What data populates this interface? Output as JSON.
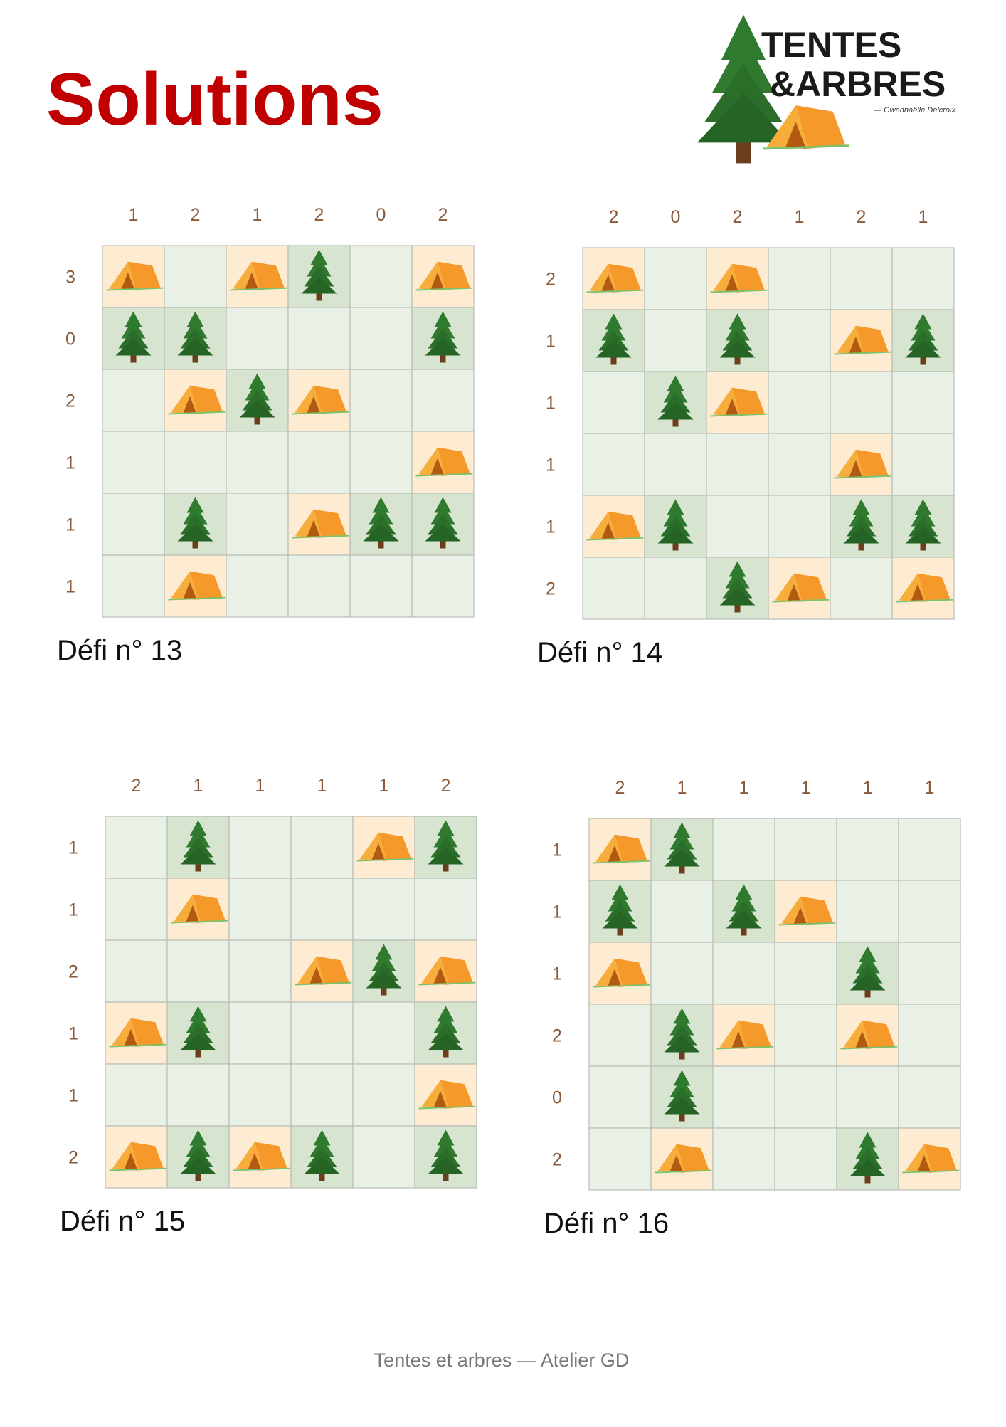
{
  "header": {
    "title": "Solutions",
    "logo": {
      "line1": "TENTES",
      "line2": "&ARBRES",
      "author": "— Gwennaëlle Delcroix"
    }
  },
  "puzzles": [
    {
      "label": "Défi n° 13",
      "columns": [
        1,
        2,
        1,
        2,
        0,
        2
      ],
      "rows": [
        3,
        0,
        2,
        1,
        1,
        1
      ],
      "grid": [
        "T.TA.T",
        "AA...A",
        ".TAT..",
        ".....T",
        ".A.TAA",
        ".T...."
      ]
    },
    {
      "label": "Défi n° 14",
      "columns": [
        2,
        0,
        2,
        1,
        2,
        1
      ],
      "rows": [
        2,
        1,
        1,
        1,
        1,
        2
      ],
      "grid": [
        "T.T...",
        "A.A.TA",
        ".AT...",
        "....T.",
        "TA..AA",
        "..AT.T"
      ]
    },
    {
      "label": "Défi n° 15",
      "columns": [
        2,
        1,
        1,
        1,
        1,
        2
      ],
      "rows": [
        1,
        1,
        2,
        1,
        1,
        2
      ],
      "grid": [
        ".A..TA",
        ".T....",
        "...TAT",
        "TA...A",
        ".....T",
        "TATA.A"
      ]
    },
    {
      "label": "Défi n° 16",
      "columns": [
        2,
        1,
        1,
        1,
        1,
        1
      ],
      "rows": [
        1,
        1,
        1,
        2,
        0,
        2
      ],
      "grid": [
        "TA....",
        "A.AT..",
        "T...A.",
        ".AT.T.",
        ".A....",
        ".T..AT"
      ]
    }
  ],
  "footer": "Tentes et arbres — Atelier GD"
}
